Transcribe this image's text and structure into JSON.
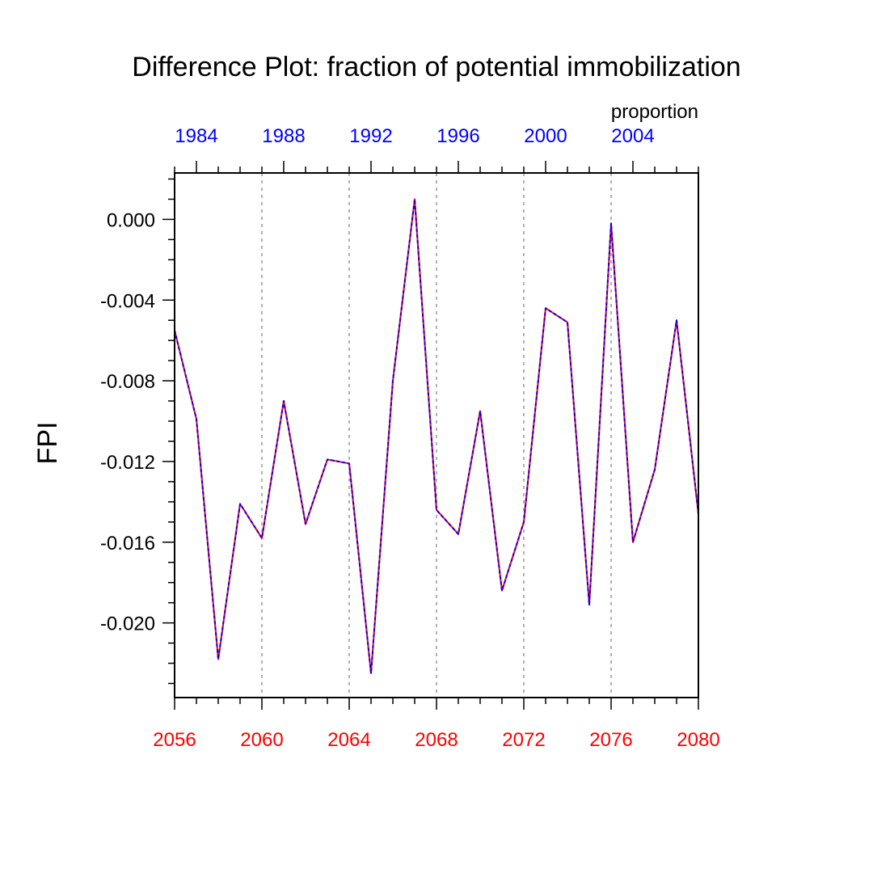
{
  "chart_data": {
    "type": "line",
    "title": "Difference Plot: fraction of potential immobilization",
    "units_label": "proportion",
    "ylabel": "FPI",
    "xlabel": "",
    "xlim": [
      2056,
      2080
    ],
    "ylim": [
      -0.0237,
      0.0023
    ],
    "grid": "vertical dashed lines at major bottom ticks",
    "x_bottom_ticks": [
      2056,
      2060,
      2064,
      2068,
      2072,
      2076,
      2080
    ],
    "x_top_ticks": [
      {
        "at": 2057,
        "label": "1984"
      },
      {
        "at": 2061,
        "label": "1988"
      },
      {
        "at": 2065,
        "label": "1992"
      },
      {
        "at": 2069,
        "label": "1996"
      },
      {
        "at": 2073,
        "label": "2000"
      },
      {
        "at": 2077,
        "label": "2004"
      }
    ],
    "y_ticks": [
      0.0,
      -0.004,
      -0.008,
      -0.012,
      -0.016,
      -0.02
    ],
    "y_tick_labels": [
      "0.000",
      "-0.004",
      "-0.008",
      "-0.012",
      "-0.016",
      "-0.020"
    ],
    "x": [
      2056,
      2057,
      2058,
      2059,
      2060,
      2061,
      2062,
      2063,
      2064,
      2065,
      2066,
      2067,
      2068,
      2069,
      2070,
      2071,
      2072,
      2073,
      2074,
      2075,
      2076,
      2077,
      2078,
      2079,
      2080
    ],
    "series": [
      {
        "color": "#ff0000",
        "style": "solid",
        "values": [
          -0.0055,
          -0.0099,
          -0.0218,
          -0.0141,
          -0.0158,
          -0.009,
          -0.0151,
          -0.0119,
          -0.0121,
          -0.0225,
          -0.008,
          0.001,
          -0.0144,
          -0.0156,
          -0.0095,
          -0.0184,
          -0.015,
          -0.0044,
          -0.0051,
          -0.0191,
          -0.0002,
          -0.016,
          -0.0124,
          -0.005,
          -0.0146
        ]
      },
      {
        "color": "#0000ff",
        "style": "dashed",
        "values": [
          -0.0055,
          -0.0099,
          -0.0218,
          -0.0141,
          -0.0158,
          -0.009,
          -0.0151,
          -0.0119,
          -0.0121,
          -0.0225,
          -0.008,
          0.001,
          -0.0144,
          -0.0156,
          -0.0095,
          -0.0184,
          -0.015,
          -0.0044,
          -0.0051,
          -0.0191,
          -0.0002,
          -0.016,
          -0.0124,
          -0.005,
          -0.0146
        ]
      }
    ],
    "colors": {
      "bottom_axis": "#ff0000",
      "top_axis": "#0000ff",
      "grid": "#999999"
    }
  }
}
